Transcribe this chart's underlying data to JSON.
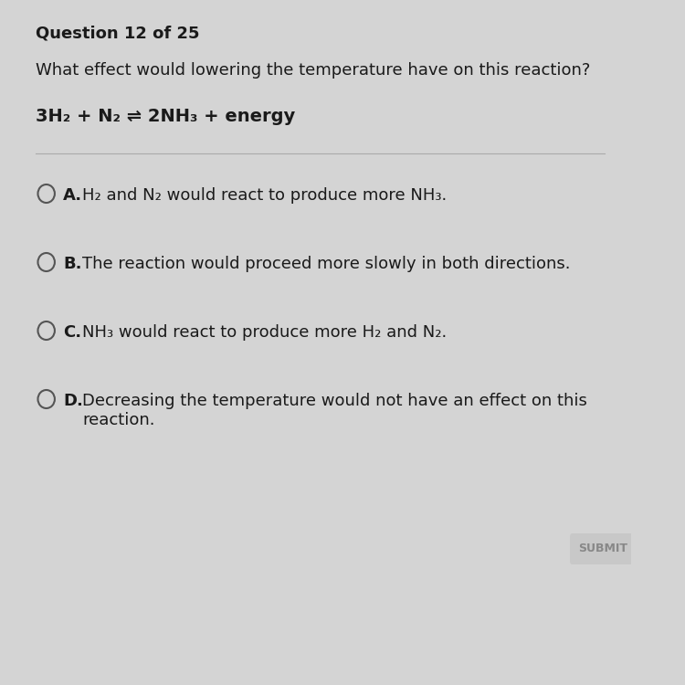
{
  "background_color": "#d4d4d4",
  "title": "Question 12 of 25",
  "question": "What effect would lowering the temperature have on this reaction?",
  "equation": "3H₂ + N₂ ⇌ 2NH₃ + energy",
  "options": [
    {
      "letter": "A.",
      "plain": "H₂ and N₂ would react to produce more NH₃."
    },
    {
      "letter": "B.",
      "plain": "The reaction would proceed more slowly in both directions."
    },
    {
      "letter": "C.",
      "plain": "NH₃ would react to produce more H₂ and N₂."
    },
    {
      "letter": "D.",
      "plain": "Decreasing the temperature would not have an effect on this\nreaction."
    }
  ],
  "submit_label": "SUBMIT",
  "title_fontsize": 13,
  "question_fontsize": 13,
  "equation_fontsize": 14,
  "option_fontsize": 13,
  "text_color": "#1a1a1a",
  "separator_color": "#aaaaaa",
  "circle_color": "#555555",
  "submit_bg": "#c8c8c8",
  "submit_text_color": "#888888"
}
